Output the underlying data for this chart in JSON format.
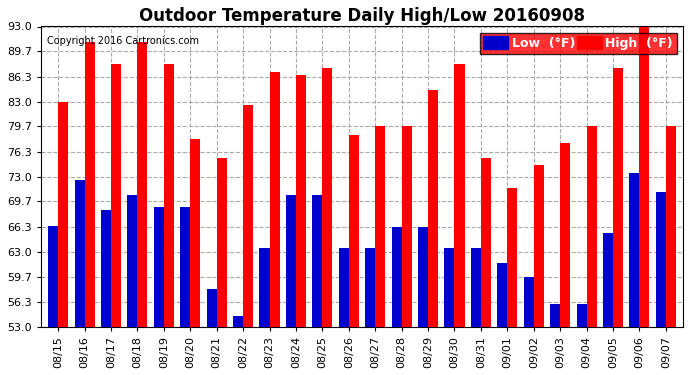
{
  "title": "Outdoor Temperature Daily High/Low 20160908",
  "copyright": "Copyright 2016 Cartronics.com",
  "legend_low": "Low  (°F)",
  "legend_high": "High  (°F)",
  "dates": [
    "08/15",
    "08/16",
    "08/17",
    "08/18",
    "08/19",
    "08/20",
    "08/21",
    "08/22",
    "08/23",
    "08/24",
    "08/25",
    "08/26",
    "08/27",
    "08/28",
    "08/29",
    "08/30",
    "08/31",
    "09/01",
    "09/02",
    "09/03",
    "09/04",
    "09/05",
    "09/06",
    "09/07"
  ],
  "highs": [
    83.0,
    91.0,
    88.0,
    91.0,
    88.0,
    78.0,
    75.5,
    82.5,
    87.0,
    86.5,
    87.5,
    78.5,
    79.7,
    79.7,
    84.5,
    88.0,
    75.5,
    71.5,
    74.5,
    77.5,
    79.7,
    87.5,
    93.0,
    79.7
  ],
  "lows": [
    66.5,
    72.5,
    68.5,
    70.5,
    69.0,
    69.0,
    58.0,
    54.5,
    63.5,
    70.5,
    70.5,
    63.5,
    63.5,
    66.3,
    66.3,
    63.5,
    63.5,
    61.5,
    59.7,
    56.0,
    56.0,
    65.5,
    73.5,
    71.0
  ],
  "ylim_min": 53.0,
  "ylim_max": 93.0,
  "yticks": [
    53.0,
    56.3,
    59.7,
    63.0,
    66.3,
    69.7,
    73.0,
    76.3,
    79.7,
    83.0,
    86.3,
    89.7,
    93.0
  ],
  "bar_width": 0.38,
  "high_color": "#ff0000",
  "low_color": "#0000cc",
  "bg_color": "#ffffff",
  "grid_color": "#aaaaaa",
  "title_fontsize": 12,
  "tick_fontsize": 8,
  "legend_fontsize": 9
}
